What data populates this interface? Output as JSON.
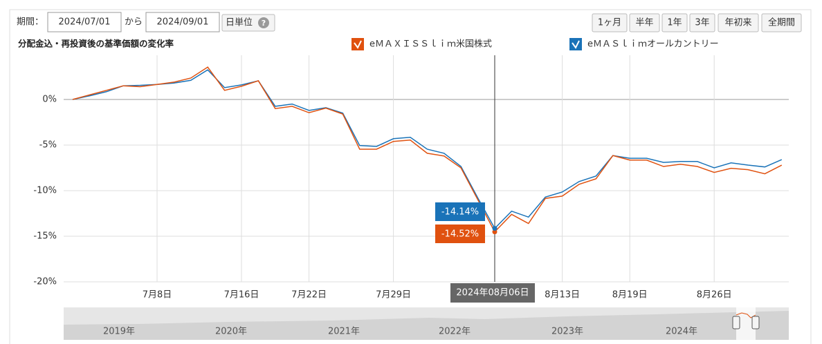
{
  "controls": {
    "period_label": "期間：",
    "start": "2024/07/01",
    "to": "から",
    "end": "2024/09/01",
    "unit": "日単位",
    "help": "?",
    "ranges": [
      "1ヶ月",
      "半年",
      "1年",
      "3年",
      "年初来",
      "全期間"
    ]
  },
  "navigator": {
    "labels": [
      "2019年",
      "2020年",
      "2021年",
      "2022年",
      "2023年",
      "2024年"
    ]
  },
  "chart_data": {
    "type": "line",
    "title": "分配金込・再投資後の基準価額の変化率",
    "categories": [
      null,
      null,
      null,
      null,
      null,
      "7月8日",
      null,
      null,
      null,
      null,
      "7月16日",
      null,
      null,
      null,
      "7月22日",
      null,
      null,
      null,
      null,
      "7月29日",
      null,
      null,
      null,
      null,
      null,
      "2024年08月06日",
      null,
      null,
      null,
      "8月13日",
      null,
      null,
      null,
      "8月19日",
      null,
      null,
      null,
      null,
      "8月26日",
      null,
      null,
      null,
      null
    ],
    "series": [
      {
        "name": "eＭＡＸＩＳＳｌｉｍ米国株式",
        "color": "#e0510f",
        "values": [
          0.0,
          0.5,
          1.0,
          1.5,
          1.4,
          1.65,
          1.9,
          2.35,
          3.55,
          1.0,
          1.45,
          2.05,
          -1.0,
          -0.75,
          -1.45,
          -0.95,
          -1.6,
          -5.45,
          -5.45,
          -4.6,
          -4.45,
          -5.9,
          -6.2,
          -7.5,
          -11.0,
          -14.52,
          -12.6,
          -13.6,
          -10.85,
          -10.6,
          -9.3,
          -8.7,
          -6.15,
          -6.65,
          -6.65,
          -7.35,
          -7.1,
          -7.35,
          -8.0,
          -7.55,
          -7.7,
          -8.15,
          -7.2
        ],
        "value_labels": [
          null,
          null,
          null,
          null,
          null,
          null,
          null,
          null,
          null,
          null,
          null,
          null,
          null,
          null,
          null,
          null,
          null,
          null,
          null,
          null,
          null,
          null,
          null,
          null,
          null,
          "-14.52%",
          null,
          null,
          null,
          null,
          null,
          null,
          null,
          null,
          null,
          null,
          null,
          null,
          null,
          null,
          null,
          null,
          null
        ]
      },
      {
        "name": "eＭＡＳｌｉｍオールカントリー",
        "color": "#1a73b8",
        "values": [
          0.0,
          0.4,
          0.85,
          1.5,
          1.55,
          1.65,
          1.8,
          2.1,
          3.25,
          1.3,
          1.6,
          2.05,
          -0.75,
          -0.5,
          -1.2,
          -0.9,
          -1.5,
          -5.05,
          -5.15,
          -4.3,
          -4.15,
          -5.45,
          -5.9,
          -7.35,
          -10.8,
          -14.14,
          -12.25,
          -12.9,
          -10.7,
          -10.15,
          -9.0,
          -8.4,
          -6.15,
          -6.45,
          -6.45,
          -6.9,
          -6.8,
          -6.8,
          -7.5,
          -6.95,
          -7.2,
          -7.4,
          -6.6
        ],
        "value_labels": [
          null,
          null,
          null,
          null,
          null,
          null,
          null,
          null,
          null,
          null,
          null,
          null,
          null,
          null,
          null,
          null,
          null,
          null,
          null,
          null,
          null,
          null,
          null,
          null,
          null,
          "-14.14%",
          null,
          null,
          null,
          null,
          null,
          null,
          null,
          null,
          null,
          null,
          null,
          null,
          null,
          null,
          null,
          null,
          null
        ]
      }
    ],
    "ylim": [
      -20,
      5
    ],
    "yticks": [
      {
        "value": 0,
        "label": "0%"
      },
      {
        "value": -5,
        "label": "-5%"
      },
      {
        "value": -10,
        "label": "-10%"
      },
      {
        "value": -15,
        "label": "-15%"
      },
      {
        "value": -20,
        "label": "-20%"
      }
    ],
    "grid": true
  }
}
